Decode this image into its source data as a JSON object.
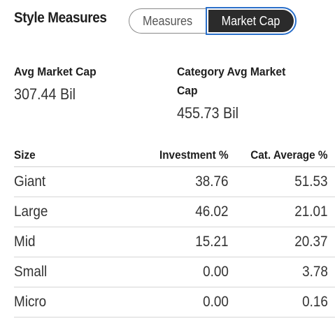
{
  "header": {
    "title": "Style Measures",
    "toggle": {
      "measures_label": "Measures",
      "market_cap_label": "Market Cap",
      "selected": "Market Cap"
    }
  },
  "stats": {
    "avg_market_cap": {
      "label": "Avg Market Cap",
      "value": "307.44 Bil"
    },
    "category_avg_market_cap": {
      "label_line1": "Category Avg Market",
      "label_line2": "Cap",
      "value": "455.73 Bil"
    }
  },
  "table": {
    "headers": {
      "size": "Size",
      "investment": "Investment %",
      "cat_average": "Cat. Average %"
    },
    "rows": [
      {
        "size": "Giant",
        "investment": "38.76",
        "cat_average": "51.53"
      },
      {
        "size": "Large",
        "investment": "46.02",
        "cat_average": "21.01"
      },
      {
        "size": "Mid",
        "investment": "15.21",
        "cat_average": "20.37"
      },
      {
        "size": "Small",
        "investment": "0.00",
        "cat_average": "3.78"
      },
      {
        "size": "Micro",
        "investment": "0.00",
        "cat_average": "0.16"
      }
    ]
  },
  "colors": {
    "selected_bg": "#2b2b2b",
    "focus_ring": "#2a6fc9"
  }
}
